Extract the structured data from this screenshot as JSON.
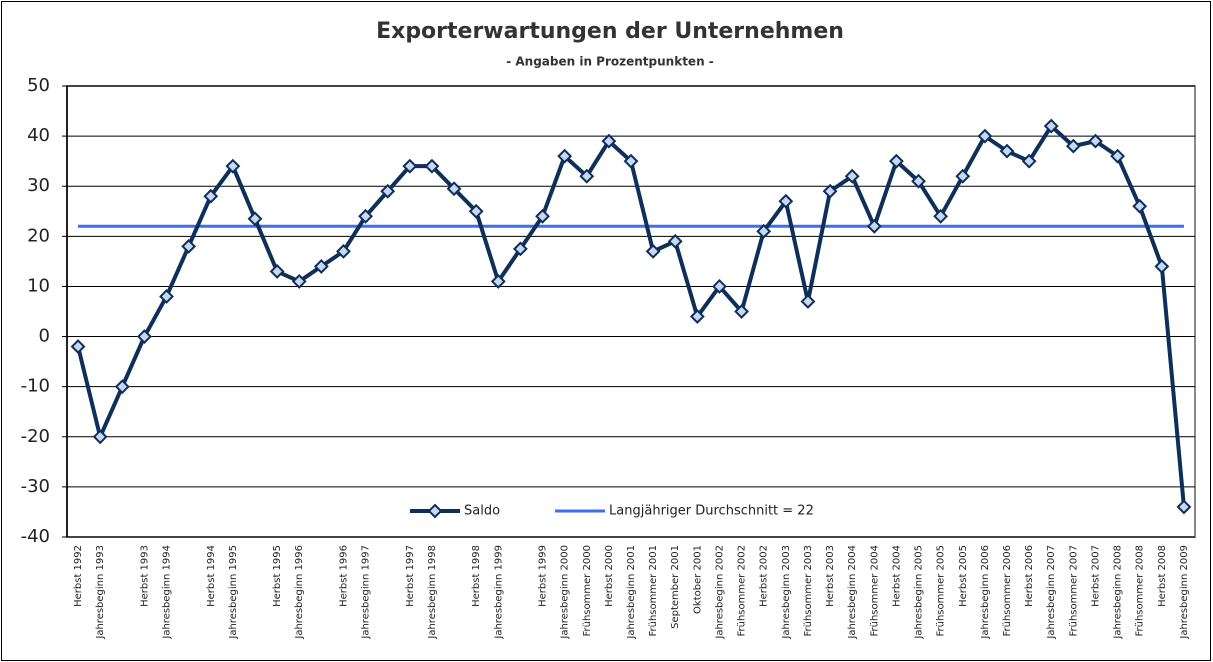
{
  "chart_data": {
    "type": "line",
    "title": "Exporterwartungen der Unternehmen",
    "subtitle": "- Angaben in Prozentpunkten -",
    "categories": [
      "Herbst 1992",
      "Jahresbeginn 1993",
      null,
      "Herbst 1993",
      "Jahresbeginn 1994",
      null,
      "Herbst 1994",
      "Jahresbeginn 1995",
      null,
      "Herbst 1995",
      "Jahresbeginn 1996",
      null,
      "Herbst 1996",
      "Jahresbeginn 1997",
      null,
      "Herbst 1997",
      "Jahresbeginn 1998",
      null,
      "Herbst 1998",
      "Jahresbeginn 1999",
      null,
      "Herbst 1999",
      "Jahresbeginn 2000",
      "Frühsommer 2000",
      "Herbst 2000",
      "Jahresbeginn 2001",
      "Frühsommer 2001",
      "September 2001",
      "Oktober 2001",
      "Jahresbeginn 2002",
      "Frühsommer 2002",
      "Herbst 2002",
      "Jahresbeginn 2003",
      "Frühsommer 2003",
      "Herbst 2003",
      "Jahresbeginn 2004",
      "Frühsommer 2004",
      "Herbst 2004",
      "Jahresbeginn 2005",
      "Frühsommer 2005",
      "Herbst 2005",
      "Jahresbeginn 2006",
      "Frühsommer 2006",
      "Herbst 2006",
      "Jahresbeginn 2007",
      "Frühsommer 2007",
      "Herbst 2007",
      "Jahresbeginn 2008",
      "Frühsommer 2008",
      "Herbst 2008",
      "Jahresbeginn 2009"
    ],
    "series": [
      {
        "name": "Saldo",
        "color": "#0d2f5a",
        "marker": "diamond",
        "values": [
          -2,
          -20,
          -10,
          0,
          8,
          18,
          28,
          34,
          23.5,
          13,
          11,
          14,
          17,
          24,
          29,
          34,
          34,
          29.5,
          25,
          11,
          17.5,
          24,
          36,
          32,
          39,
          35,
          17,
          19,
          4,
          10,
          5,
          21,
          27,
          7,
          29,
          32,
          22,
          35,
          31,
          24,
          32,
          40,
          37,
          35,
          42,
          38,
          39,
          36,
          26,
          14,
          -34
        ]
      },
      {
        "name": "Langjähriger Durchschnitt = 22",
        "color": "#3b6ff0",
        "values": [
          22,
          22,
          22,
          22,
          22,
          22,
          22,
          22,
          22,
          22,
          22,
          22,
          22,
          22,
          22,
          22,
          22,
          22,
          22,
          22,
          22,
          22,
          22,
          22,
          22,
          22,
          22,
          22,
          22,
          22,
          22,
          22,
          22,
          22,
          22,
          22,
          22,
          22,
          22,
          22,
          22,
          22,
          22,
          22,
          22,
          22,
          22,
          22,
          22,
          22,
          22
        ]
      }
    ],
    "ylim": [
      -40,
      50
    ],
    "yticks": [
      -40,
      -30,
      -20,
      -10,
      0,
      10,
      20,
      30,
      40,
      50
    ],
    "grid": true,
    "legend": "bottom"
  }
}
